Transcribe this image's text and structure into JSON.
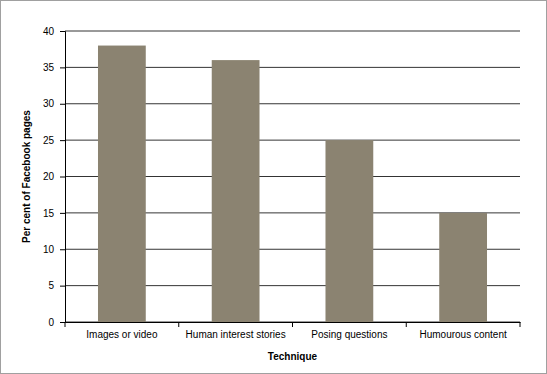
{
  "chart_data": {
    "type": "bar",
    "x_label": "Technique",
    "y_label": "Per cent of Facebook pages",
    "categories": [
      "Images or video",
      "Human interest stories",
      "Posing questions",
      "Humourous content"
    ],
    "values": [
      38,
      36,
      25,
      15
    ],
    "color": "#8b8371",
    "ylim": [
      0,
      40
    ],
    "yticks": [
      0,
      5,
      10,
      15,
      20,
      25,
      30,
      35,
      40
    ],
    "grid": true
  }
}
